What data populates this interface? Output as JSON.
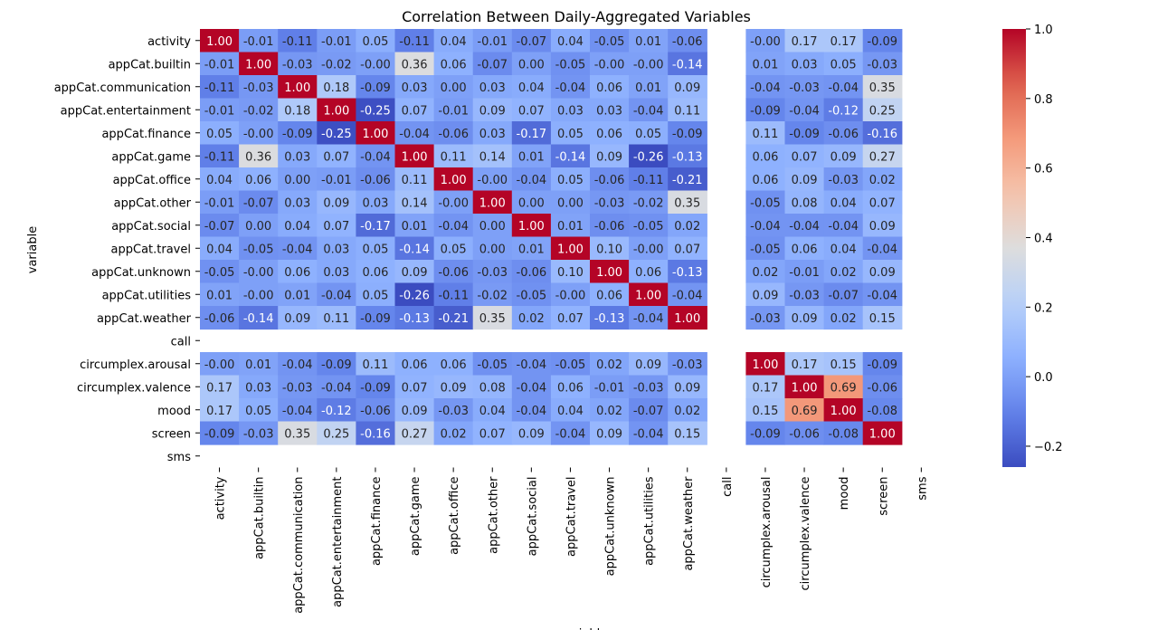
{
  "chart_data": {
    "type": "heatmap",
    "title": "Correlation Between Daily-Aggregated Variables",
    "ylabel": "variable",
    "xlabel": "variable",
    "variables": [
      "activity",
      "appCat.builtin",
      "appCat.communication",
      "appCat.entertainment",
      "appCat.finance",
      "appCat.game",
      "appCat.office",
      "appCat.other",
      "appCat.social",
      "appCat.travel",
      "appCat.unknown",
      "appCat.utilities",
      "appCat.weather",
      "call",
      "circumplex.arousal",
      "circumplex.valence",
      "mood",
      "screen",
      "sms"
    ],
    "values": [
      [
        1.0,
        -0.01,
        -0.11,
        -0.01,
        0.05,
        -0.11,
        0.04,
        -0.01,
        -0.07,
        0.04,
        -0.05,
        0.01,
        -0.06,
        null,
        -0.0,
        0.17,
        0.17,
        -0.09,
        null
      ],
      [
        -0.01,
        1.0,
        -0.03,
        -0.02,
        -0.0,
        0.36,
        0.06,
        -0.07,
        0.0,
        -0.05,
        -0.0,
        -0.0,
        -0.14,
        null,
        0.01,
        0.03,
        0.05,
        -0.03,
        null
      ],
      [
        -0.11,
        -0.03,
        1.0,
        0.18,
        -0.09,
        0.03,
        0.0,
        0.03,
        0.04,
        -0.04,
        0.06,
        0.01,
        0.09,
        null,
        -0.04,
        -0.03,
        -0.04,
        0.35,
        null
      ],
      [
        -0.01,
        -0.02,
        0.18,
        1.0,
        -0.25,
        0.07,
        -0.01,
        0.09,
        0.07,
        0.03,
        0.03,
        -0.04,
        0.11,
        null,
        -0.09,
        -0.04,
        -0.12,
        0.25,
        null
      ],
      [
        0.05,
        -0.0,
        -0.09,
        -0.25,
        1.0,
        -0.04,
        -0.06,
        0.03,
        -0.17,
        0.05,
        0.06,
        0.05,
        -0.09,
        null,
        0.11,
        -0.09,
        -0.06,
        -0.16,
        null
      ],
      [
        -0.11,
        0.36,
        0.03,
        0.07,
        -0.04,
        1.0,
        0.11,
        0.14,
        0.01,
        -0.14,
        0.09,
        -0.26,
        -0.13,
        null,
        0.06,
        0.07,
        0.09,
        0.27,
        null
      ],
      [
        0.04,
        0.06,
        0.0,
        -0.01,
        -0.06,
        0.11,
        1.0,
        -0.0,
        -0.04,
        0.05,
        -0.06,
        -0.11,
        -0.21,
        null,
        0.06,
        0.09,
        -0.03,
        0.02,
        null
      ],
      [
        -0.01,
        -0.07,
        0.03,
        0.09,
        0.03,
        0.14,
        -0.0,
        1.0,
        0.0,
        0.0,
        -0.03,
        -0.02,
        0.35,
        null,
        -0.05,
        0.08,
        0.04,
        0.07,
        null
      ],
      [
        -0.07,
        0.0,
        0.04,
        0.07,
        -0.17,
        0.01,
        -0.04,
        0.0,
        1.0,
        0.01,
        -0.06,
        -0.05,
        0.02,
        null,
        -0.04,
        -0.04,
        -0.04,
        0.09,
        null
      ],
      [
        0.04,
        -0.05,
        -0.04,
        0.03,
        0.05,
        -0.14,
        0.05,
        0.0,
        0.01,
        1.0,
        0.1,
        -0.0,
        0.07,
        null,
        -0.05,
        0.06,
        0.04,
        -0.04,
        null
      ],
      [
        -0.05,
        -0.0,
        0.06,
        0.03,
        0.06,
        0.09,
        -0.06,
        -0.03,
        -0.06,
        0.1,
        1.0,
        0.06,
        -0.13,
        null,
        0.02,
        -0.01,
        0.02,
        0.09,
        null
      ],
      [
        0.01,
        -0.0,
        0.01,
        -0.04,
        0.05,
        -0.26,
        -0.11,
        -0.02,
        -0.05,
        -0.0,
        0.06,
        1.0,
        -0.04,
        null,
        0.09,
        -0.03,
        -0.07,
        -0.04,
        null
      ],
      [
        -0.06,
        -0.14,
        0.09,
        0.11,
        -0.09,
        -0.13,
        -0.21,
        0.35,
        0.02,
        0.07,
        -0.13,
        -0.04,
        1.0,
        null,
        -0.03,
        0.09,
        0.02,
        0.15,
        null
      ],
      [
        null,
        null,
        null,
        null,
        null,
        null,
        null,
        null,
        null,
        null,
        null,
        null,
        null,
        null,
        null,
        null,
        null,
        null,
        null
      ],
      [
        -0.0,
        0.01,
        -0.04,
        -0.09,
        0.11,
        0.06,
        0.06,
        -0.05,
        -0.04,
        -0.05,
        0.02,
        0.09,
        -0.03,
        null,
        1.0,
        0.17,
        0.15,
        -0.09,
        null
      ],
      [
        0.17,
        0.03,
        -0.03,
        -0.04,
        -0.09,
        0.07,
        0.09,
        0.08,
        -0.04,
        0.06,
        -0.01,
        -0.03,
        0.09,
        null,
        0.17,
        1.0,
        0.69,
        -0.06,
        null
      ],
      [
        0.17,
        0.05,
        -0.04,
        -0.12,
        -0.06,
        0.09,
        -0.03,
        0.04,
        -0.04,
        0.04,
        0.02,
        -0.07,
        0.02,
        null,
        0.15,
        0.69,
        1.0,
        -0.08,
        null
      ],
      [
        -0.09,
        -0.03,
        0.35,
        0.25,
        -0.16,
        0.27,
        0.02,
        0.07,
        0.09,
        -0.04,
        0.09,
        -0.04,
        0.15,
        null,
        -0.09,
        -0.06,
        -0.08,
        1.0,
        null
      ],
      [
        null,
        null,
        null,
        null,
        null,
        null,
        null,
        null,
        null,
        null,
        null,
        null,
        null,
        null,
        null,
        null,
        null,
        null,
        null
      ]
    ],
    "colormap": "coolwarm",
    "vmin": -0.26,
    "vmax": 1.0,
    "colorbar_ticks": [
      "1.0",
      "0.8",
      "0.6",
      "0.4",
      "0.2",
      "0.0",
      "−0.2"
    ],
    "colorbar_tick_values": [
      1.0,
      0.8,
      0.6,
      0.4,
      0.2,
      0.0,
      -0.2
    ],
    "annotated": true,
    "legend": "colorbar-right"
  }
}
